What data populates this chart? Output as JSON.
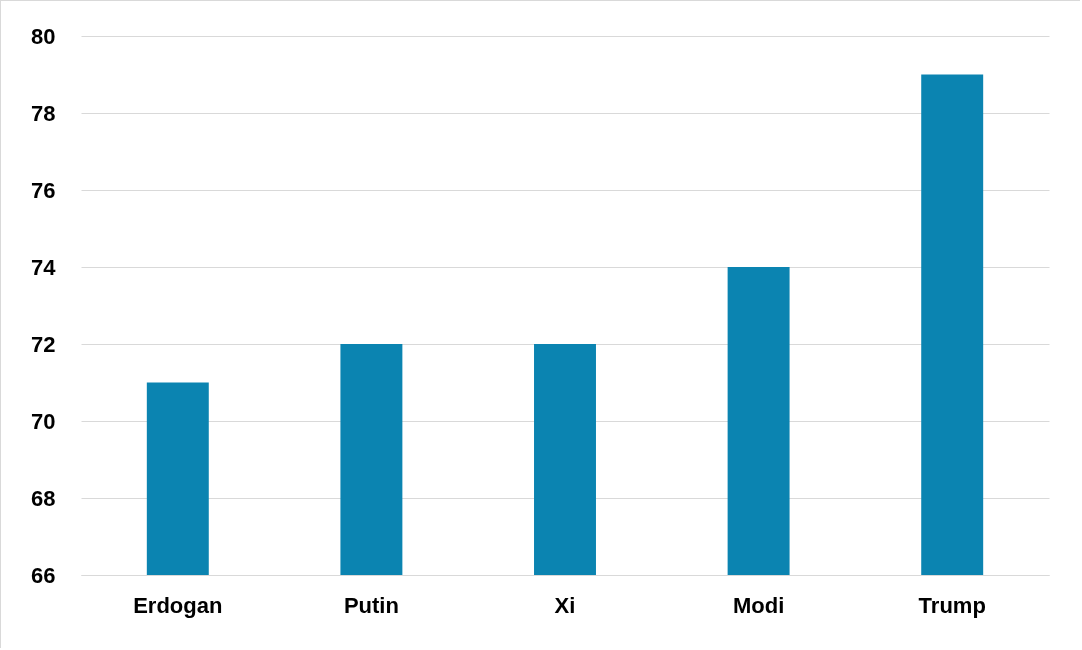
{
  "chart_data": {
    "type": "bar",
    "categories": [
      "Erdogan",
      "Putin",
      "Xi",
      "Modi",
      "Trump"
    ],
    "values": [
      71,
      72,
      72,
      74,
      79
    ],
    "color": "#0b84b1",
    "ylim": [
      66,
      80
    ],
    "yticks": [
      66,
      68,
      70,
      72,
      74,
      76,
      78,
      80
    ],
    "grid": "y"
  }
}
